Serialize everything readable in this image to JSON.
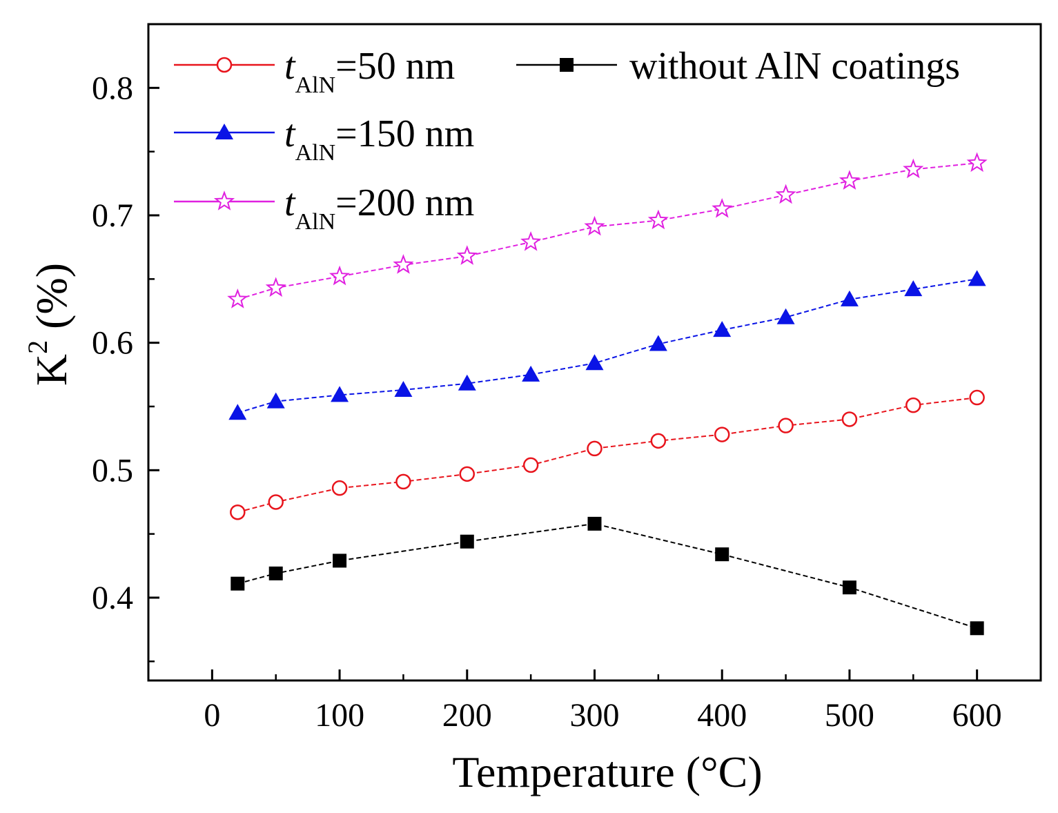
{
  "chart_data": {
    "type": "line",
    "title": "",
    "xlabel": "Temperature (°C)",
    "ylabel": "K² (%)",
    "ylabel_parts": {
      "base": "K",
      "sup": "2",
      "unit": " (%)"
    },
    "xlim": [
      -50,
      650
    ],
    "ylim": [
      0.335,
      0.85
    ],
    "xticks": [
      0,
      100,
      200,
      300,
      400,
      500,
      600
    ],
    "xtick_labels": [
      "0",
      "100",
      "200",
      "300",
      "400",
      "500",
      "600"
    ],
    "yticks": [
      0.4,
      0.5,
      0.6,
      0.7,
      0.8
    ],
    "ytick_labels": [
      "0.4",
      "0.5",
      "0.6",
      "0.7",
      "0.8"
    ],
    "yminor": [
      0.35,
      0.45,
      0.55,
      0.65,
      0.75
    ],
    "xminor": [
      50,
      150,
      250,
      350,
      450,
      550
    ],
    "grid": false,
    "legend_position": "top-left",
    "series": [
      {
        "id": "t50",
        "name": "tAlN=50 nm",
        "label_italic": "t",
        "label_sub": "AlN",
        "label_rest": "=50 nm",
        "color": "#e8141c",
        "marker": "circle-open",
        "x": [
          20,
          50,
          100,
          150,
          200,
          250,
          300,
          350,
          400,
          450,
          500,
          550,
          600
        ],
        "y": [
          0.467,
          0.475,
          0.486,
          0.491,
          0.497,
          0.504,
          0.517,
          0.523,
          0.528,
          0.535,
          0.54,
          0.551,
          0.557
        ]
      },
      {
        "id": "none",
        "name": "without AlN coatings",
        "label_rest": "without AlN coatings",
        "color": "#000000",
        "marker": "square-filled",
        "x": [
          20,
          50,
          100,
          200,
          300,
          400,
          500,
          600
        ],
        "y": [
          0.411,
          0.419,
          0.429,
          0.444,
          0.458,
          0.434,
          0.408,
          0.376
        ]
      },
      {
        "id": "t150",
        "name": "tAlN=150 nm",
        "label_italic": "t",
        "label_sub": "AlN",
        "label_rest": "=150 nm",
        "color": "#0a14e6",
        "marker": "triangle-filled",
        "x": [
          20,
          50,
          100,
          150,
          200,
          250,
          300,
          350,
          400,
          450,
          500,
          550,
          600
        ],
        "y": [
          0.545,
          0.554,
          0.559,
          0.563,
          0.568,
          0.575,
          0.584,
          0.599,
          0.61,
          0.62,
          0.634,
          0.642,
          0.65
        ]
      },
      {
        "id": "t200",
        "name": "tAlN=200 nm",
        "label_italic": "t",
        "label_sub": "AlN",
        "label_rest": "=200 nm",
        "color": "#e020e0",
        "marker": "star-open",
        "x": [
          20,
          50,
          100,
          150,
          200,
          250,
          300,
          350,
          400,
          450,
          500,
          550,
          600
        ],
        "y": [
          0.634,
          0.643,
          0.652,
          0.661,
          0.668,
          0.679,
          0.691,
          0.696,
          0.705,
          0.716,
          0.727,
          0.736,
          0.741
        ]
      }
    ]
  }
}
